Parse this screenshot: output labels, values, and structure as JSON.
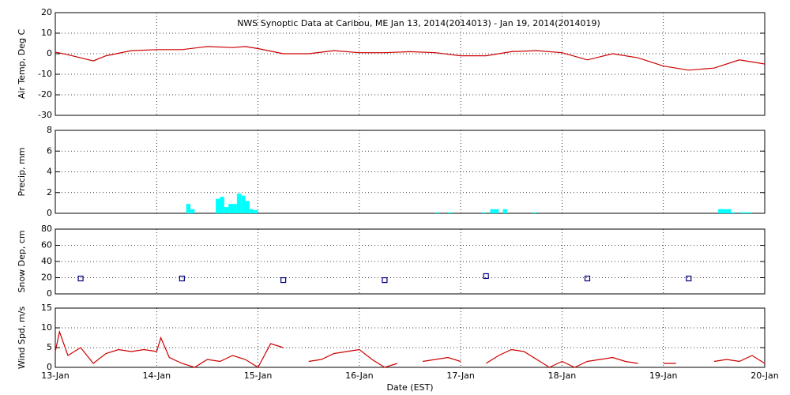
{
  "chart_data": [
    {
      "type": "line",
      "title": "NWS Synoptic Data at Caribou, ME   Jan 13, 2014(2014013) - Jan 19, 2014(2014019)",
      "ylabel": "Air Temp, Deg C",
      "xlim": [
        0,
        168
      ],
      "xticks": [
        0,
        24,
        48,
        72,
        96,
        120,
        144,
        168
      ],
      "ylim": [
        -30,
        20
      ],
      "yticks": [
        -30,
        -20,
        -10,
        0,
        10,
        20
      ],
      "grid": true,
      "series": [
        {
          "name": "Air Temp",
          "color": "#cc0000",
          "x": [
            0,
            3,
            6,
            9,
            12,
            18,
            24,
            30,
            36,
            42,
            45,
            48,
            54,
            60,
            66,
            72,
            78,
            84,
            90,
            96,
            102,
            108,
            114,
            120,
            126,
            132,
            138,
            144,
            150,
            156,
            162,
            168
          ],
          "values": [
            0.8,
            -0.5,
            -2,
            -3.5,
            -1,
            1.5,
            2,
            2,
            3.5,
            3,
            3.5,
            2.5,
            0,
            0,
            1.5,
            0.5,
            0.5,
            1,
            0.5,
            -1,
            -1,
            1,
            1.5,
            0.5,
            -3,
            0,
            -2,
            -6,
            -8,
            -7,
            -3,
            -5
          ]
        }
      ]
    },
    {
      "type": "bar",
      "ylabel": "Precip, mm",
      "xlim": [
        0,
        168
      ],
      "xticks": [
        0,
        24,
        48,
        72,
        96,
        120,
        144,
        168
      ],
      "ylim": [
        0,
        8
      ],
      "yticks": [
        0,
        2,
        4,
        6,
        8
      ],
      "grid": true,
      "series": [
        {
          "name": "Precip",
          "color": "#00ffff",
          "x": [
            31,
            32,
            38,
            39,
            40,
            41,
            42,
            43,
            44,
            45,
            46,
            47,
            90,
            93,
            101,
            103,
            104,
            106,
            113,
            157,
            158,
            159,
            160,
            162,
            163,
            164
          ],
          "values": [
            0.9,
            0.4,
            1.4,
            1.6,
            0.6,
            0.9,
            0.9,
            1.9,
            1.7,
            1.2,
            0.4,
            0.3,
            0.1,
            0.1,
            0.1,
            0.4,
            0.4,
            0.4,
            0.1,
            0.4,
            0.4,
            0.4,
            0.1,
            0.1,
            0.1,
            0.1
          ]
        }
      ]
    },
    {
      "type": "scatter",
      "ylabel": "Snow Dep, cm",
      "xlim": [
        0,
        168
      ],
      "xticks": [
        0,
        24,
        48,
        72,
        96,
        120,
        144,
        168
      ],
      "ylim": [
        0,
        80
      ],
      "yticks": [
        0,
        20,
        40,
        60,
        80
      ],
      "grid": true,
      "series": [
        {
          "name": "Snow Depth",
          "color": "#000080",
          "x": [
            6,
            30,
            54,
            78,
            102,
            126,
            150
          ],
          "values": [
            19,
            19,
            17,
            17,
            22,
            19,
            19
          ]
        }
      ]
    },
    {
      "type": "line",
      "ylabel": "Wind Spd, m/s",
      "xlabel": "Date (EST)",
      "xlim": [
        0,
        168
      ],
      "xticks": [
        {
          "value": 0,
          "label": "13-Jan"
        },
        {
          "value": 24,
          "label": "14-Jan"
        },
        {
          "value": 48,
          "label": "15-Jan"
        },
        {
          "value": 72,
          "label": "16-Jan"
        },
        {
          "value": 96,
          "label": "17-Jan"
        },
        {
          "value": 120,
          "label": "18-Jan"
        },
        {
          "value": 144,
          "label": "19-Jan"
        },
        {
          "value": 168,
          "label": "20-Jan"
        }
      ],
      "ylim": [
        0,
        15
      ],
      "yticks": [
        0,
        5,
        10,
        15
      ],
      "grid": true,
      "series": [
        {
          "name": "Wind Speed",
          "color": "#cc0000",
          "x": [
            0,
            1,
            3,
            6,
            9,
            12,
            15,
            18,
            21,
            24,
            25,
            27,
            30,
            33,
            36,
            39,
            42,
            45,
            48,
            51,
            54,
            57,
            60,
            63,
            66,
            69,
            72,
            75,
            78,
            81,
            84,
            87,
            90,
            93,
            96,
            99,
            102,
            105,
            108,
            111,
            114,
            117,
            120,
            123,
            126,
            129,
            132,
            135,
            138,
            141,
            144,
            147,
            150,
            153,
            156,
            159,
            162,
            165,
            168
          ],
          "values": [
            4,
            9,
            3,
            5,
            1,
            3.5,
            4.5,
            4,
            4.5,
            4,
            7.5,
            2.5,
            1,
            0,
            2,
            1.5,
            3,
            2,
            0,
            6,
            5,
            null,
            1.5,
            2,
            3.5,
            4,
            4.5,
            2,
            0,
            1,
            null,
            1.5,
            2,
            2.5,
            1.5,
            null,
            1,
            3,
            4.5,
            4,
            2,
            0,
            1.5,
            0,
            1.5,
            2,
            2.5,
            1.5,
            1,
            null,
            1,
            1,
            null,
            null,
            1.5,
            2,
            1.5,
            3,
            1
          ]
        }
      ]
    }
  ]
}
